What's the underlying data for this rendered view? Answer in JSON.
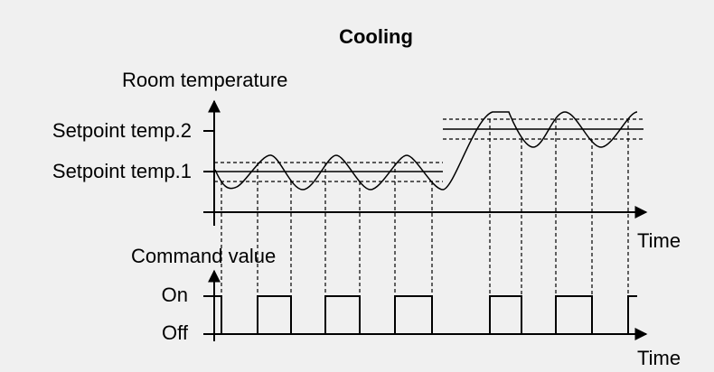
{
  "title": "Cooling",
  "upper": {
    "y_label": "Room temperature",
    "setpoint_2": "Setpoint temp.2",
    "setpoint_1": "Setpoint temp.1",
    "x_label": "Time"
  },
  "lower": {
    "y_label": "Command value",
    "on": "On",
    "off": "Off",
    "x_label": "Time"
  }
}
